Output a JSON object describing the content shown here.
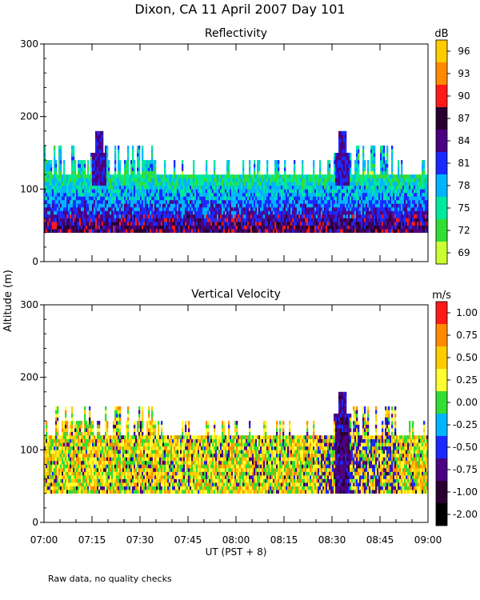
{
  "title": "Dixon, CA  11 April 2007   Day 101",
  "footer_note": "Raw data, no quality checks",
  "ylabel": "Altitude  (m)",
  "xlabel": "UT  (PST + 8)",
  "chart_data": [
    {
      "type": "heatmap",
      "title": "Reflectivity",
      "units": "dB",
      "xlabel": "UT  (PST + 8)",
      "ylabel": "Altitude  (m)",
      "x_range": [
        "07:00",
        "09:00"
      ],
      "x_ticks": [
        "07:00",
        "07:15",
        "07:30",
        "07:45",
        "08:00",
        "08:15",
        "08:30",
        "08:45",
        "09:00"
      ],
      "ylim": [
        0,
        300
      ],
      "y_ticks": [
        0,
        100,
        200,
        300
      ],
      "colorbar": {
        "labels": [
          "96",
          "93",
          "90",
          "87",
          "84",
          "81",
          "78",
          "75",
          "72",
          "69"
        ],
        "colors": [
          "#ffcc00",
          "#ff8c00",
          "#ff1a1a",
          "#2a0030",
          "#4b0082",
          "#1a2aff",
          "#00b4ff",
          "#00e8a0",
          "#33dd33",
          "#ccff33"
        ]
      },
      "layers": [
        {
          "alt_low": 40,
          "alt_high": 70,
          "value": 88
        },
        {
          "alt_low": 70,
          "alt_high": 100,
          "value": 83
        },
        {
          "alt_low": 100,
          "alt_high": 120,
          "value": 79
        },
        {
          "alt_low": 120,
          "alt_high": 140,
          "value": 77
        }
      ],
      "notable": [
        {
          "time": "08:33",
          "top_alt": 180,
          "desc": "plume"
        },
        {
          "time": "07:17",
          "top_alt": 180,
          "desc": "spike"
        }
      ]
    },
    {
      "type": "heatmap",
      "title": "Vertical Velocity",
      "units": "m/s",
      "xlabel": "UT  (PST + 8)",
      "ylabel": "Altitude  (m)",
      "x_range": [
        "07:00",
        "09:00"
      ],
      "x_ticks": [
        "07:00",
        "07:15",
        "07:30",
        "07:45",
        "08:00",
        "08:15",
        "08:30",
        "08:45",
        "09:00"
      ],
      "ylim": [
        0,
        300
      ],
      "y_ticks": [
        0,
        100,
        200,
        300
      ],
      "colorbar": {
        "labels": [
          "1.00",
          "0.75",
          "0.50",
          "0.25",
          "0.00",
          "-0.25",
          "-0.50",
          "-0.75",
          "-1.00",
          "-2.00"
        ],
        "colors": [
          "#ff1a1a",
          "#ff8c00",
          "#ffcc00",
          "#ffff33",
          "#33dd33",
          "#00b4ff",
          "#1a2aff",
          "#4b0082",
          "#2a0030",
          "#000000"
        ]
      },
      "layers": [
        {
          "alt_low": 40,
          "alt_high": 140,
          "value": 0.4
        }
      ],
      "notable": [
        {
          "time": "08:33",
          "top_alt": 180,
          "desc": "downdraft plume"
        }
      ]
    }
  ]
}
